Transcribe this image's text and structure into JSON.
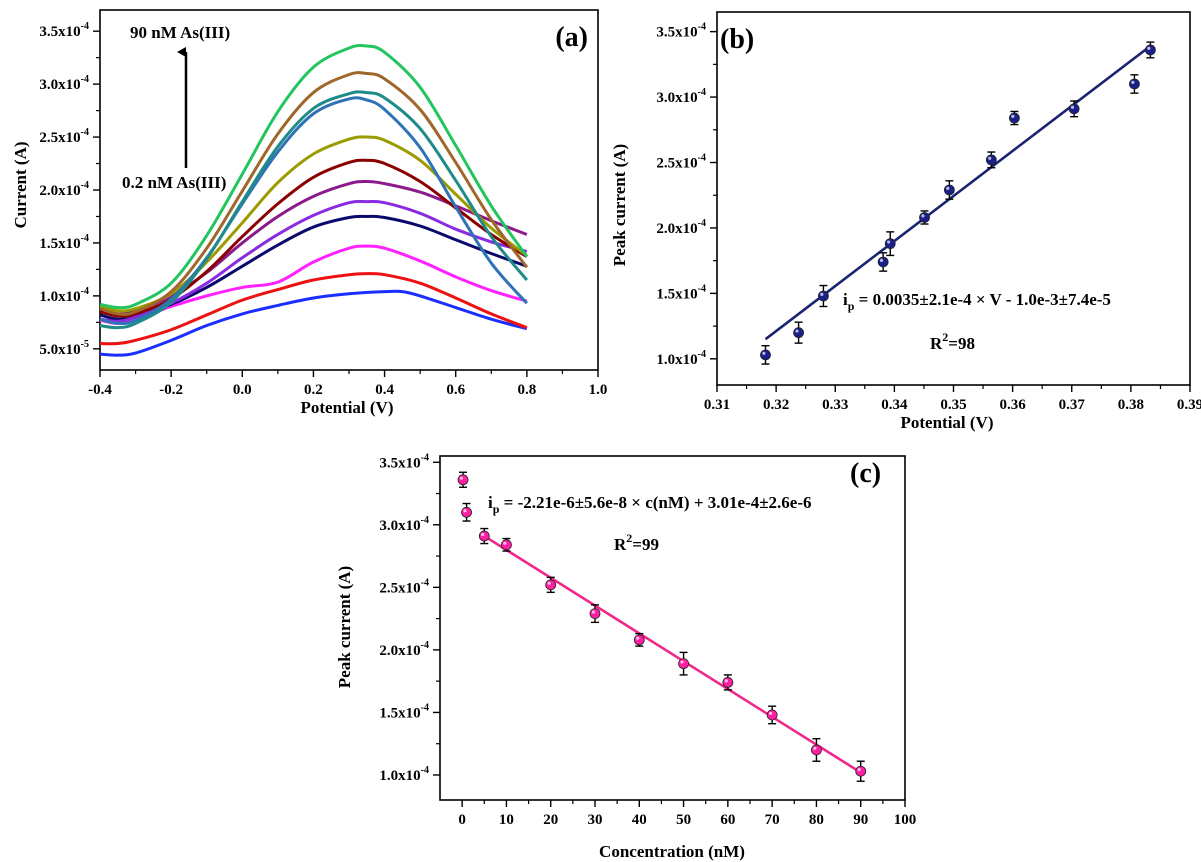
{
  "chart_data": [
    {
      "panel": "(a)",
      "type": "line",
      "xlabel": "Potential (V)",
      "ylabel": "Current (A)",
      "xlim": [
        -0.4,
        1.0
      ],
      "ylim": [
        3e-05,
        0.00037
      ],
      "x_ticks": [
        -0.4,
        -0.2,
        0.0,
        0.2,
        0.4,
        0.6,
        0.8,
        1.0
      ],
      "x_tick_labels": [
        "-0.4",
        "-0.2",
        "0.0",
        "0.2",
        "0.4",
        "0.6",
        "0.8",
        "1.0"
      ],
      "y_ticks": [
        5e-05,
        0.0001,
        0.00015,
        0.0002,
        0.00025,
        0.0003,
        0.00035
      ],
      "y_tick_labels": [
        {
          "base": "5.0x10",
          "exp": "-5"
        },
        {
          "base": "1.0x10",
          "exp": "-4"
        },
        {
          "base": "1.5x10",
          "exp": "-4"
        },
        {
          "base": "2.0x10",
          "exp": "-4"
        },
        {
          "base": "2.5x10",
          "exp": "-4"
        },
        {
          "base": "3.0x10",
          "exp": "-4"
        },
        {
          "base": "3.5x10",
          "exp": "-4"
        }
      ],
      "annotations": {
        "top": "90 nM As(III)",
        "bottom": "0.2 nM As(III)"
      },
      "grid": false,
      "series": [
        {
          "color": "#1a2eff",
          "x": [
            -0.4,
            -0.35,
            -0.3,
            -0.2,
            -0.1,
            0.0,
            0.1,
            0.2,
            0.3,
            0.4,
            0.45,
            0.5,
            0.6,
            0.7,
            0.8
          ],
          "y": [
            4.5e-05,
            4.4e-05,
            4.6e-05,
            5.8e-05,
            7.2e-05,
            8.3e-05,
            9.1e-05,
            9.8e-05,
            0.000102,
            0.000104,
            0.000104,
            0.0001,
            8.9e-05,
            7.8e-05,
            6.9e-05
          ]
        },
        {
          "color": "#ee1111",
          "x": [
            -0.4,
            -0.35,
            -0.3,
            -0.2,
            -0.1,
            0.0,
            0.1,
            0.2,
            0.3,
            0.35,
            0.4,
            0.5,
            0.6,
            0.7,
            0.8
          ],
          "y": [
            5.5e-05,
            5.5e-05,
            5.8e-05,
            6.8e-05,
            8.2e-05,
            9.6e-05,
            0.000106,
            0.000115,
            0.00012,
            0.000121,
            0.00012,
            0.000112,
            9.8e-05,
            8.3e-05,
            7e-05
          ]
        },
        {
          "color": "#ff22ff",
          "x": [
            -0.4,
            -0.35,
            -0.3,
            -0.2,
            -0.1,
            0.0,
            0.1,
            0.2,
            0.3,
            0.35,
            0.4,
            0.5,
            0.6,
            0.7,
            0.8
          ],
          "y": [
            7.7e-05,
            7.4e-05,
            7.8e-05,
            9e-05,
            0.0001,
            0.000108,
            0.000113,
            0.000132,
            0.000145,
            0.000147,
            0.000145,
            0.000133,
            0.000118,
            0.000105,
            9.5e-05
          ]
        },
        {
          "color": "#0a0a6e",
          "x": [
            -0.4,
            -0.35,
            -0.3,
            -0.2,
            -0.1,
            0.0,
            0.1,
            0.2,
            0.3,
            0.35,
            0.4,
            0.5,
            0.6,
            0.7,
            0.8
          ],
          "y": [
            8.2e-05,
            7.8e-05,
            8.1e-05,
            9.2e-05,
            0.000108,
            0.000128,
            0.000148,
            0.000165,
            0.000174,
            0.000175,
            0.000174,
            0.000166,
            0.000153,
            0.00014,
            0.000128
          ]
        },
        {
          "color": "#8a2be2",
          "x": [
            -0.4,
            -0.35,
            -0.3,
            -0.2,
            -0.1,
            0.0,
            0.1,
            0.2,
            0.3,
            0.35,
            0.4,
            0.5,
            0.6,
            0.7,
            0.8
          ],
          "y": [
            7.8e-05,
            7.6e-05,
            8e-05,
            9.3e-05,
            0.000112,
            0.000136,
            0.000158,
            0.000176,
            0.000188,
            0.000189,
            0.000188,
            0.000178,
            0.000163,
            0.000151,
            0.000142
          ]
        },
        {
          "color": "#8b1a8b",
          "x": [
            -0.4,
            -0.35,
            -0.3,
            -0.2,
            -0.1,
            0.0,
            0.1,
            0.2,
            0.3,
            0.35,
            0.4,
            0.5,
            0.6,
            0.7,
            0.8
          ],
          "y": [
            8.7e-05,
            8.3e-05,
            8.6e-05,
            0.0001,
            0.000122,
            0.00015,
            0.000175,
            0.000194,
            0.000206,
            0.000208,
            0.000206,
            0.000198,
            0.000185,
            0.000171,
            0.000158
          ]
        },
        {
          "color": "#8b0000",
          "x": [
            -0.4,
            -0.35,
            -0.3,
            -0.2,
            -0.1,
            0.0,
            0.1,
            0.2,
            0.3,
            0.35,
            0.4,
            0.5,
            0.6,
            0.7,
            0.8
          ],
          "y": [
            8.5e-05,
            8.1e-05,
            8.3e-05,
            9.7e-05,
            0.000123,
            0.000156,
            0.000187,
            0.000212,
            0.000226,
            0.000228,
            0.000225,
            0.000208,
            0.000183,
            0.000158,
            0.000137
          ]
        },
        {
          "color": "#9b9b00",
          "x": [
            -0.4,
            -0.35,
            -0.3,
            -0.2,
            -0.1,
            0.0,
            0.1,
            0.2,
            0.3,
            0.35,
            0.4,
            0.5,
            0.6,
            0.7,
            0.8
          ],
          "y": [
            9e-05,
            8.6e-05,
            8.8e-05,
            0.000102,
            0.000132,
            0.000169,
            0.000207,
            0.000234,
            0.000248,
            0.00025,
            0.000247,
            0.000228,
            0.000196,
            0.000164,
            0.000138
          ]
        },
        {
          "color": "#2f73b6",
          "x": [
            -0.4,
            -0.35,
            -0.3,
            -0.2,
            -0.1,
            0.0,
            0.1,
            0.2,
            0.3,
            0.35,
            0.4,
            0.5,
            0.6,
            0.7,
            0.8
          ],
          "y": [
            7.8e-05,
            7.4e-05,
            7.7e-05,
            9.7e-05,
            0.000136,
            0.000187,
            0.000236,
            0.000272,
            0.000286,
            0.000285,
            0.000276,
            0.00024,
            0.000184,
            0.000131,
            9.3e-05
          ]
        },
        {
          "color": "#1e8a8a",
          "x": [
            -0.4,
            -0.35,
            -0.3,
            -0.2,
            -0.1,
            0.0,
            0.1,
            0.2,
            0.3,
            0.35,
            0.4,
            0.5,
            0.6,
            0.7,
            0.8
          ],
          "y": [
            7.2e-05,
            7e-05,
            7.4e-05,
            9.4e-05,
            0.000135,
            0.000189,
            0.000241,
            0.000277,
            0.000291,
            0.000292,
            0.000287,
            0.000258,
            0.000209,
            0.000156,
            0.000115
          ]
        },
        {
          "color": "#a0662a",
          "x": [
            -0.4,
            -0.35,
            -0.3,
            -0.2,
            -0.1,
            0.0,
            0.1,
            0.2,
            0.3,
            0.35,
            0.4,
            0.5,
            0.6,
            0.7,
            0.8
          ],
          "y": [
            8.8e-05,
            8.3e-05,
            8.5e-05,
            0.000104,
            0.000145,
            0.000199,
            0.000253,
            0.000292,
            0.000309,
            0.00031,
            0.000305,
            0.000276,
            0.000226,
            0.000172,
            0.000127
          ]
        },
        {
          "color": "#22c55e",
          "x": [
            -0.4,
            -0.35,
            -0.3,
            -0.2,
            -0.1,
            0.0,
            0.1,
            0.2,
            0.3,
            0.35,
            0.4,
            0.5,
            0.6,
            0.7,
            0.8
          ],
          "y": [
            9.2e-05,
            8.9e-05,
            9.2e-05,
            0.000112,
            0.000157,
            0.000215,
            0.000274,
            0.000316,
            0.000334,
            0.000336,
            0.00033,
            0.000297,
            0.000242,
            0.000185,
            0.000137
          ]
        }
      ]
    },
    {
      "panel": "(b)",
      "type": "scatter",
      "xlabel": "Potential (V)",
      "ylabel": "Peak current (A)",
      "xlim": [
        0.31,
        0.39
      ],
      "ylim": [
        8e-05,
        0.000365
      ],
      "x_ticks": [
        0.31,
        0.32,
        0.33,
        0.34,
        0.35,
        0.36,
        0.37,
        0.38,
        0.39
      ],
      "x_tick_labels": [
        "0.31",
        "0.32",
        "0.33",
        "0.34",
        "0.35",
        "0.36",
        "0.37",
        "0.38",
        "0.39"
      ],
      "y_ticks": [
        0.0001,
        0.00015,
        0.0002,
        0.00025,
        0.0003,
        0.00035
      ],
      "y_tick_labels": [
        {
          "base": "1.0x10",
          "exp": "-4"
        },
        {
          "base": "1.5x10",
          "exp": "-4"
        },
        {
          "base": "2.0x10",
          "exp": "-4"
        },
        {
          "base": "2.5x10",
          "exp": "-4"
        },
        {
          "base": "3.0x10",
          "exp": "-4"
        },
        {
          "base": "3.5x10",
          "exp": "-4"
        }
      ],
      "marker_color": "#1b1f8a",
      "fit_color": "#1b2470",
      "fit": {
        "x": [
          0.3182,
          0.3833
        ],
        "y": [
          0.000115,
          0.000339
        ]
      },
      "equation": {
        "lead": "i",
        "sub": "p",
        "main": " = 0.0035±2.1e-4 × V - 1.0e-3±7.4e-5"
      },
      "r2": {
        "lead": "R",
        "sup": "2",
        "rest": "=98"
      },
      "grid": false,
      "points": [
        {
          "x": 0.3182,
          "y": 0.000103,
          "err": 7e-06
        },
        {
          "x": 0.3238,
          "y": 0.00012,
          "err": 8e-06
        },
        {
          "x": 0.328,
          "y": 0.000148,
          "err": 8e-06
        },
        {
          "x": 0.3381,
          "y": 0.000174,
          "err": 7e-06
        },
        {
          "x": 0.3393,
          "y": 0.000188,
          "err": 9e-06
        },
        {
          "x": 0.3451,
          "y": 0.000208,
          "err": 5e-06
        },
        {
          "x": 0.3493,
          "y": 0.000229,
          "err": 7e-06
        },
        {
          "x": 0.3564,
          "y": 0.000252,
          "err": 6e-06
        },
        {
          "x": 0.3603,
          "y": 0.000284,
          "err": 5e-06
        },
        {
          "x": 0.3704,
          "y": 0.000291,
          "err": 6e-06
        },
        {
          "x": 0.3806,
          "y": 0.00031,
          "err": 7e-06
        },
        {
          "x": 0.3833,
          "y": 0.000336,
          "err": 6e-06
        }
      ]
    },
    {
      "panel": "(c)",
      "type": "scatter",
      "xlabel": "Concentration (nM)",
      "ylabel": "Peak current (A)",
      "xlim": [
        -5,
        100
      ],
      "ylim": [
        8e-05,
        0.000355
      ],
      "x_ticks": [
        0,
        10,
        20,
        30,
        40,
        50,
        60,
        70,
        80,
        90,
        100
      ],
      "x_tick_labels": [
        "0",
        "10",
        "20",
        "30",
        "40",
        "50",
        "60",
        "70",
        "80",
        "90",
        "100"
      ],
      "y_ticks": [
        0.0001,
        0.00015,
        0.0002,
        0.00025,
        0.0003,
        0.00035
      ],
      "y_tick_labels": [
        {
          "base": "1.0x10",
          "exp": "-4"
        },
        {
          "base": "1.5x10",
          "exp": "-4"
        },
        {
          "base": "2.0x10",
          "exp": "-4"
        },
        {
          "base": "2.5x10",
          "exp": "-4"
        },
        {
          "base": "3.0x10",
          "exp": "-4"
        },
        {
          "base": "3.5x10",
          "exp": "-4"
        }
      ],
      "marker_color": "#ff1fa5",
      "fit_color": "#f0288c",
      "fit": {
        "x": [
          5,
          90
        ],
        "y": [
          0.000291,
          0.000102
        ]
      },
      "equation": {
        "lead": "i",
        "sub": "p",
        "main": " = -2.21e-6±5.6e-8 × c(nM) + 3.01e-4±2.6e-6"
      },
      "r2": {
        "lead": "R",
        "sup": "2",
        "rest": "=99"
      },
      "grid": false,
      "points": [
        {
          "x": 0.2,
          "y": 0.000336,
          "err": 6e-06
        },
        {
          "x": 1,
          "y": 0.00031,
          "err": 7e-06
        },
        {
          "x": 5,
          "y": 0.000291,
          "err": 6e-06
        },
        {
          "x": 10,
          "y": 0.000284,
          "err": 5e-06
        },
        {
          "x": 20,
          "y": 0.000252,
          "err": 6e-06
        },
        {
          "x": 30,
          "y": 0.000229,
          "err": 7e-06
        },
        {
          "x": 40,
          "y": 0.000208,
          "err": 5e-06
        },
        {
          "x": 50,
          "y": 0.000189,
          "err": 9e-06
        },
        {
          "x": 60,
          "y": 0.000174,
          "err": 6e-06
        },
        {
          "x": 70,
          "y": 0.000148,
          "err": 7e-06
        },
        {
          "x": 80,
          "y": 0.00012,
          "err": 9e-06
        },
        {
          "x": 90,
          "y": 0.000103,
          "err": 8e-06
        }
      ]
    }
  ]
}
